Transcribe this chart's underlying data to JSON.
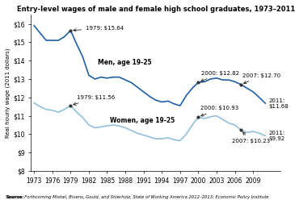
{
  "title": "Entry-level wages of male and female high school graduates, 1973–2011",
  "ylabel": "Real hourly wage (2011 dollars)",
  "source": "Source:  Forthcoming Mishel, Bivens, Gould, and Shierholz, State of Working America 2012–2013; Economic Policy Institute",
  "men_data": {
    "years": [
      1973,
      1974,
      1975,
      1976,
      1977,
      1978,
      1979,
      1980,
      1981,
      1982,
      1983,
      1984,
      1985,
      1986,
      1987,
      1988,
      1989,
      1990,
      1991,
      1992,
      1993,
      1994,
      1995,
      1996,
      1997,
      1998,
      1999,
      2000,
      2001,
      2002,
      2003,
      2004,
      2005,
      2006,
      2007,
      2008,
      2009,
      2010,
      2011
    ],
    "values": [
      15.9,
      15.5,
      15.1,
      15.1,
      15.1,
      15.3,
      15.64,
      14.9,
      14.2,
      13.2,
      13.0,
      13.1,
      13.05,
      13.1,
      13.1,
      12.95,
      12.8,
      12.55,
      12.3,
      12.05,
      11.85,
      11.75,
      11.8,
      11.65,
      11.55,
      12.1,
      12.5,
      12.82,
      12.85,
      13.0,
      13.05,
      12.95,
      12.95,
      12.85,
      12.7,
      12.5,
      12.3,
      12.0,
      11.68
    ]
  },
  "women_data": {
    "years": [
      1973,
      1974,
      1975,
      1976,
      1977,
      1978,
      1979,
      1980,
      1981,
      1982,
      1983,
      1984,
      1985,
      1986,
      1987,
      1988,
      1989,
      1990,
      1991,
      1992,
      1993,
      1994,
      1995,
      1996,
      1997,
      1998,
      1999,
      2000,
      2001,
      2002,
      2003,
      2004,
      2005,
      2006,
      2007,
      2008,
      2009,
      2010,
      2011
    ],
    "values": [
      11.7,
      11.5,
      11.35,
      11.3,
      11.2,
      11.35,
      11.56,
      11.2,
      10.9,
      10.5,
      10.35,
      10.4,
      10.45,
      10.5,
      10.45,
      10.35,
      10.2,
      10.05,
      9.95,
      9.85,
      9.75,
      9.75,
      9.8,
      9.7,
      9.65,
      10.0,
      10.5,
      10.93,
      10.85,
      10.95,
      11.0,
      10.8,
      10.6,
      10.5,
      10.23,
      10.1,
      10.15,
      10.05,
      9.92
    ]
  },
  "men_color": "#1f5fa6",
  "women_color": "#92c0dc",
  "ylim": [
    8.0,
    16.5
  ],
  "yticks": [
    8,
    9,
    10,
    11,
    12,
    13,
    14,
    15,
    16
  ],
  "ytick_labels": [
    "$8",
    "$9",
    "$10",
    "$11",
    "$12",
    "$13",
    "$14",
    "$15",
    "$16"
  ],
  "xlim": [
    1972.5,
    2013.5
  ],
  "xticks": [
    1973,
    1976,
    1979,
    1982,
    1985,
    1988,
    1991,
    1994,
    1997,
    2000,
    2003,
    2006,
    2009
  ]
}
